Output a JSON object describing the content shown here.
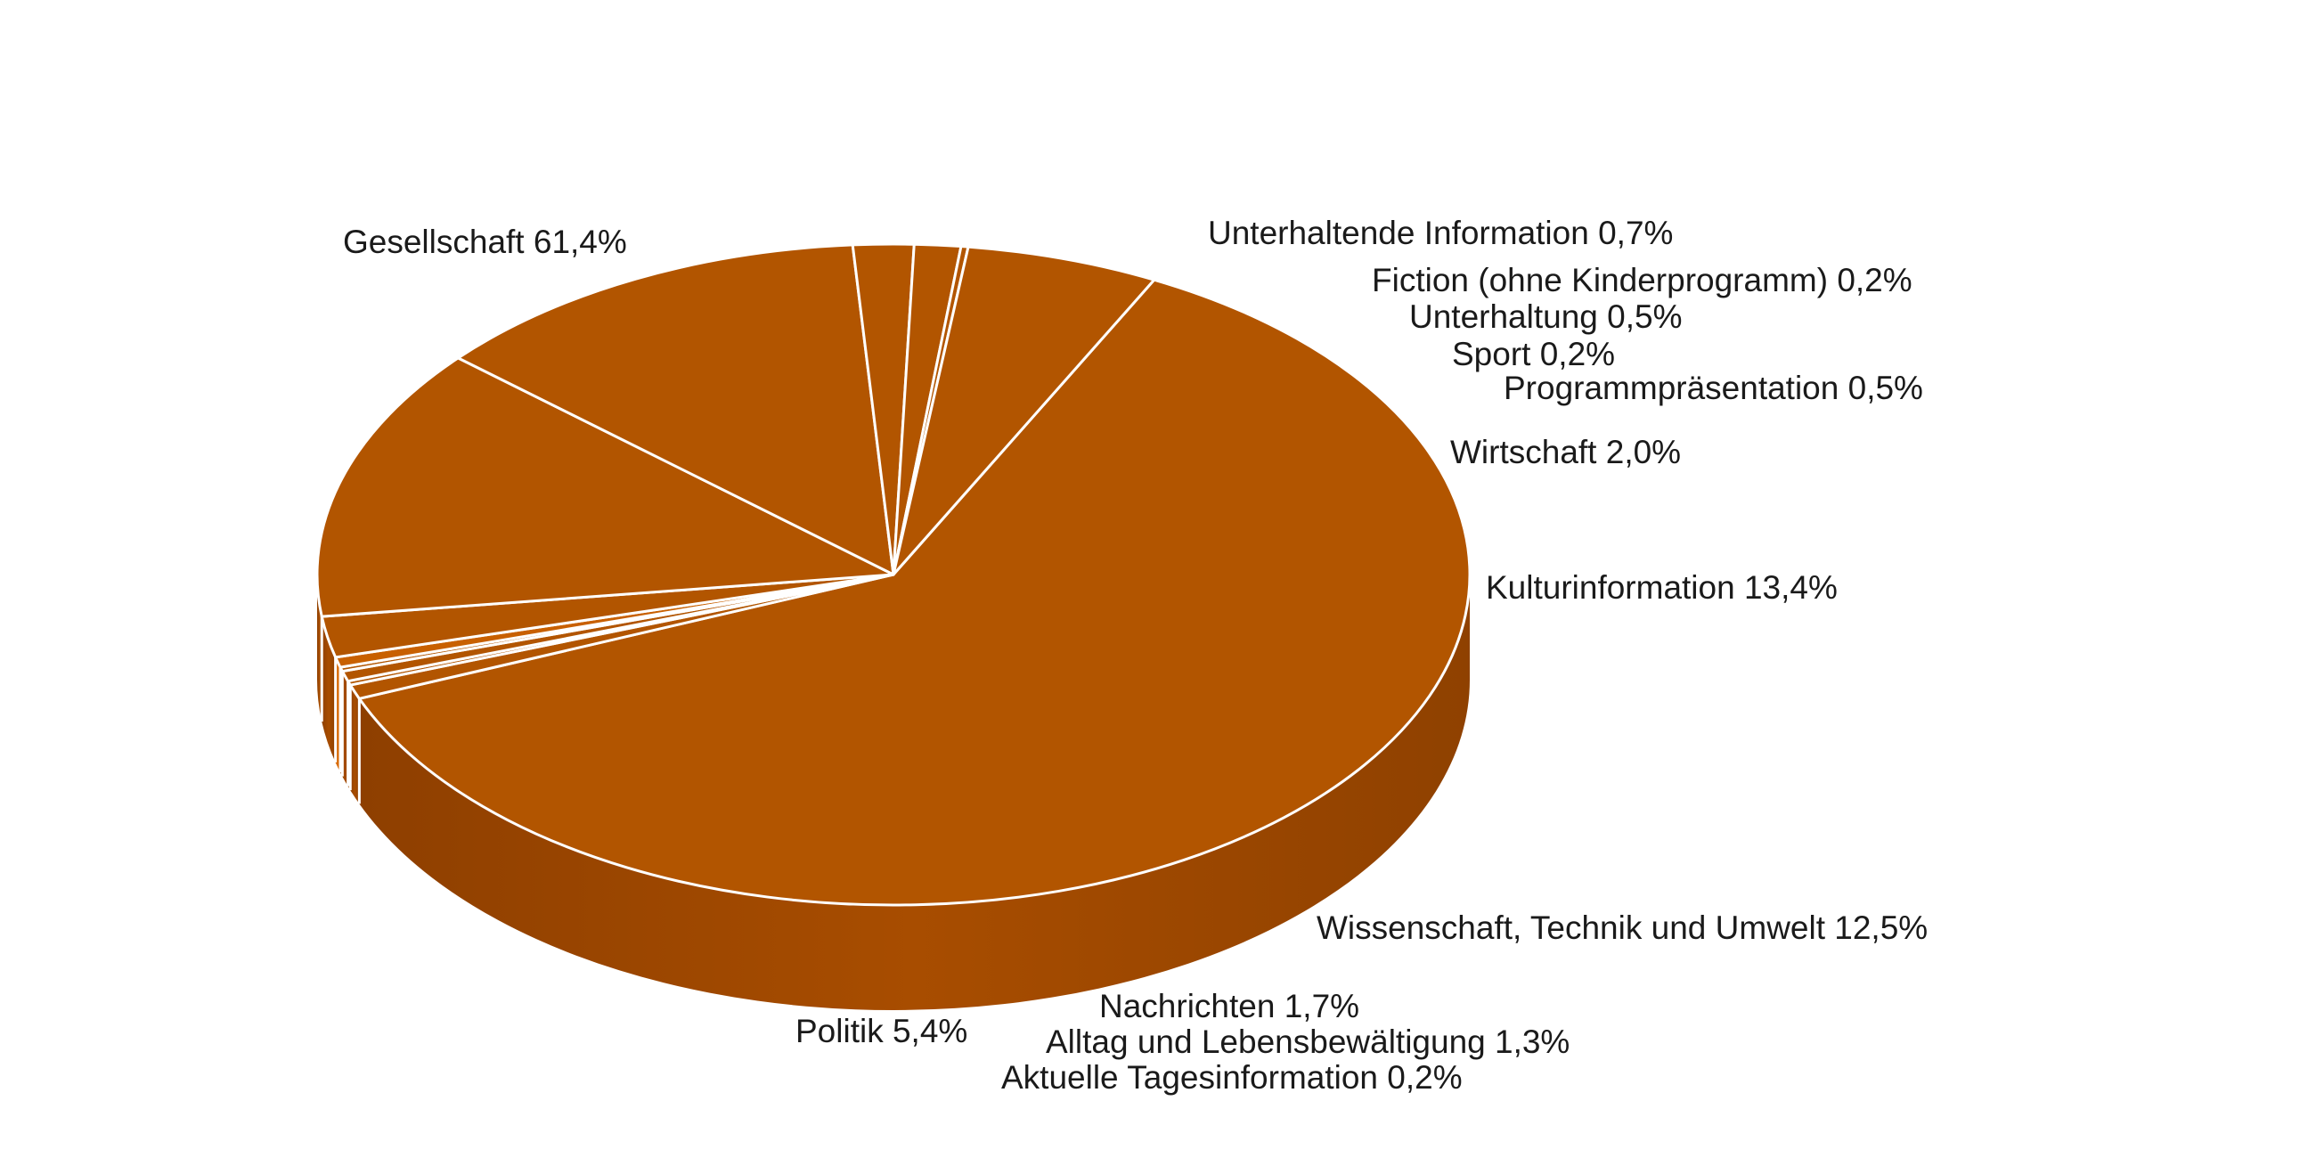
{
  "chart_data": {
    "type": "pie",
    "style": "3d",
    "colors": {
      "top": "#B25500",
      "side_dark": "#8F4000",
      "side_light": "#B05200",
      "bright_slice_top": "#C86000",
      "bright_slice_side": "#D86A06",
      "separator": "#ffffff"
    },
    "slices": [
      {
        "name": "Gesellschaft",
        "value": 61.4,
        "text": "Gesellschaft  61,4%"
      },
      {
        "name": "Unterhaltende Information",
        "value": 0.7,
        "text": "Unterhaltende Information  0,7%"
      },
      {
        "name": "Fiction (ohne Kinderprogramm)",
        "value": 0.2,
        "text": "Fiction (ohne Kinderprogramm)  0,2%"
      },
      {
        "name": "Unterhaltung",
        "value": 0.5,
        "text": "Unterhaltung  0,5%"
      },
      {
        "name": "Sport",
        "value": 0.2,
        "text": "Sport  0,2%"
      },
      {
        "name": "Programmpräsentation",
        "value": 0.5,
        "text": "Programmpräsentation  0,5%"
      },
      {
        "name": "Wirtschaft",
        "value": 2.0,
        "text": "Wirtschaft  2,0%"
      },
      {
        "name": "Kulturinformation",
        "value": 13.4,
        "text": "Kulturinformation  13,4%"
      },
      {
        "name": "Wissenschaft, Technik und Umwelt",
        "value": 12.5,
        "text": "Wissenschaft, Technik und Umwelt  12,5%"
      },
      {
        "name": "Nachrichten",
        "value": 1.7,
        "text": "Nachrichten  1,7%"
      },
      {
        "name": "Alltag und Lebensbewältigung",
        "value": 1.3,
        "text": "Alltag und Lebensbewältigung  1,3%"
      },
      {
        "name": "Aktuelle Tagesinformation",
        "value": 0.2,
        "text": "Aktuelle Tagesinformation  0,2%"
      },
      {
        "name": "Politik",
        "value": 5.4,
        "text": "Politik  5,4%"
      }
    ]
  }
}
